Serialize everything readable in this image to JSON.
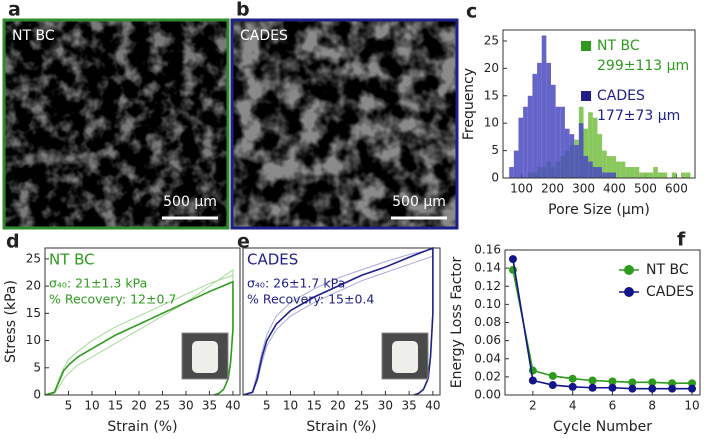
{
  "images": [
    {
      "panel": "a",
      "label": "NT BC",
      "scale_bar": "500 µm",
      "color": "#2e8b2e"
    },
    {
      "panel": "b",
      "label": "CADES",
      "scale_bar": "500 µm",
      "color": "#1f1f8a"
    }
  ],
  "chart_data": [
    {
      "panel": "c",
      "type": "histogram",
      "xlabel": "Pore Size (µm)",
      "ylabel": "Frequency",
      "bins": [
        60,
        75,
        90,
        105,
        120,
        135,
        150,
        165,
        180,
        195,
        210,
        225,
        240,
        255,
        270,
        285,
        300,
        315,
        330,
        345,
        360,
        375,
        390,
        405,
        420,
        435,
        450,
        465,
        480,
        495,
        510,
        525,
        540,
        555,
        570,
        585,
        600,
        615,
        630,
        645
      ],
      "xlim": [
        40,
        660
      ],
      "xticks": [
        100,
        200,
        300,
        400,
        500,
        600
      ],
      "ylim": [
        0,
        27
      ],
      "yticks": [
        0,
        5,
        10,
        15,
        20,
        25
      ],
      "series": [
        {
          "name": "NT BC",
          "annotation": "299±113 µm",
          "color": "#2e9b1e",
          "fill": "#7cc24a",
          "values": [
            0,
            0,
            0,
            0,
            1,
            1,
            2,
            2,
            3,
            2,
            3,
            4,
            5,
            6,
            7,
            13,
            9,
            12,
            11,
            8,
            5,
            4,
            4,
            3,
            3,
            2,
            2,
            2,
            1,
            1,
            1,
            2,
            1,
            1,
            0,
            1,
            0,
            1,
            1
          ]
        },
        {
          "name": "CADES",
          "annotation": "177±73 µm",
          "color": "#1f1f8a",
          "fill": "#4a4ac0",
          "values": [
            2,
            5,
            11,
            13,
            15,
            19,
            21,
            26,
            21,
            17,
            13,
            13,
            9,
            8,
            6,
            10,
            4,
            3,
            2,
            2,
            1,
            1,
            1,
            0,
            0,
            0,
            0,
            0,
            0,
            0,
            0,
            0,
            0,
            0,
            0,
            0,
            0,
            0,
            0
          ]
        }
      ]
    },
    {
      "panel": "d",
      "type": "line",
      "xlabel": "Strain (%)",
      "ylabel": "Stress (kPa)",
      "color": "#2e9b1e",
      "annotations": [
        "NT BC",
        "σ₄₀: 21±1.3 kPa",
        "% Recovery: 12±0.7"
      ],
      "xlim": [
        0,
        41.5
      ],
      "xticks": [
        5,
        10,
        15,
        20,
        25,
        30,
        35,
        40
      ],
      "ylim": [
        0,
        27
      ],
      "yticks": [
        0,
        5,
        10,
        15,
        20,
        25
      ],
      "series": [
        {
          "color": "#a6d99a",
          "width": 1,
          "x": [
            0,
            2,
            3,
            4,
            5,
            7,
            10,
            15,
            20,
            25,
            30,
            35,
            40,
            40,
            39.5,
            39,
            38,
            37,
            36
          ],
          "values": [
            0,
            0.3,
            1.5,
            3,
            4,
            5.5,
            7,
            9.5,
            12,
            14.5,
            17,
            20,
            23,
            13,
            6,
            3,
            1,
            0.3,
            0
          ]
        },
        {
          "color": "#a6d99a",
          "width": 1,
          "x": [
            0,
            2,
            3,
            4,
            5,
            7,
            10,
            15,
            20,
            25,
            30,
            35,
            40,
            40,
            39.5,
            39,
            38,
            37,
            36
          ],
          "values": [
            0,
            0.6,
            3,
            5,
            6.5,
            8,
            10,
            12.5,
            14.5,
            16.5,
            18.5,
            20.5,
            22,
            12,
            6,
            3,
            1,
            0.3,
            0
          ]
        },
        {
          "color": "#2e9b1e",
          "width": 1.6,
          "x": [
            0,
            2,
            3,
            4,
            5,
            7,
            10,
            15,
            20,
            25,
            30,
            35,
            40,
            40,
            39.5,
            39,
            38,
            37,
            36
          ],
          "values": [
            0,
            0.5,
            2.5,
            4.5,
            5.5,
            7,
            8.5,
            11,
            13,
            15,
            17,
            19,
            20.8,
            12,
            6,
            3,
            1,
            0.3,
            0
          ]
        }
      ]
    },
    {
      "panel": "e",
      "type": "line",
      "xlabel": "Strain (%)",
      "color": "#1f1f8a",
      "annotations": [
        "CADES",
        "σ₄₀: 26±1.7 kPa",
        "% Recovery: 15±0.4"
      ],
      "xlim": [
        0,
        41.5
      ],
      "xticks": [
        5,
        10,
        15,
        20,
        25,
        30,
        35,
        40
      ],
      "ylim": [
        0,
        27
      ],
      "series": [
        {
          "color": "#a9a9dc",
          "width": 1,
          "x": [
            0,
            2,
            3,
            4,
            5,
            7,
            10,
            15,
            20,
            25,
            30,
            35,
            40,
            40,
            39.5,
            39,
            38,
            37,
            36
          ],
          "values": [
            0,
            0.6,
            4,
            8,
            11,
            14.5,
            17,
            19.5,
            21.5,
            23,
            24.5,
            25.8,
            26.8,
            16,
            7,
            3,
            1,
            0.3,
            0
          ]
        },
        {
          "color": "#a9a9dc",
          "width": 1,
          "x": [
            0,
            2,
            3,
            4,
            5,
            7,
            10,
            15,
            20,
            25,
            30,
            35,
            40,
            40,
            39.5,
            39,
            38,
            37,
            36
          ],
          "values": [
            0,
            0.4,
            2.5,
            6,
            9,
            12,
            14.5,
            17,
            19,
            21,
            22.5,
            24,
            25.5,
            14,
            7,
            3,
            1,
            0.3,
            0
          ]
        },
        {
          "color": "#1f1f8a",
          "width": 1.6,
          "x": [
            0,
            2,
            3,
            4,
            5,
            7,
            10,
            15,
            20,
            25,
            30,
            35,
            40,
            40,
            39.5,
            39,
            38,
            37,
            36
          ],
          "values": [
            0,
            0.5,
            3,
            7,
            10,
            13,
            15.5,
            18,
            20,
            22,
            23.5,
            25.3,
            27,
            15,
            7,
            3,
            1,
            0.3,
            0
          ]
        }
      ]
    },
    {
      "panel": "f",
      "type": "line",
      "markers": true,
      "xlabel": "Cycle Number",
      "ylabel": "Energy Loss Factor",
      "x": [
        1,
        2,
        3,
        4,
        5,
        6,
        7,
        8,
        9,
        10
      ],
      "xlim": [
        0.6,
        10.4
      ],
      "xticks": [
        2,
        4,
        6,
        8,
        10
      ],
      "ylim": [
        0,
        0.16
      ],
      "yticks": [
        {
          "value": 0,
          "label": "0.00"
        },
        {
          "value": 0.02,
          "label": "0.02"
        },
        {
          "value": 0.04,
          "label": "0.04"
        },
        {
          "value": 0.06,
          "label": "0.06"
        },
        {
          "value": 0.08,
          "label": "0.08"
        },
        {
          "value": 0.1,
          "label": "0.10"
        },
        {
          "value": 0.12,
          "label": "0.12"
        },
        {
          "value": 0.14,
          "label": "0.14"
        },
        {
          "value": 0.16,
          "label": "0.16"
        }
      ],
      "series": [
        {
          "name": "NT BC",
          "color": "#2e9b1e",
          "width": 1.6,
          "values": [
            0.138,
            0.027,
            0.021,
            0.018,
            0.016,
            0.015,
            0.014,
            0.014,
            0.013,
            0.013
          ]
        },
        {
          "name": "CADES",
          "color": "#14148a",
          "width": 1.6,
          "values": [
            0.15,
            0.016,
            0.011,
            0.009,
            0.008,
            0.008,
            0.007,
            0.007,
            0.007,
            0.007
          ]
        }
      ]
    }
  ]
}
